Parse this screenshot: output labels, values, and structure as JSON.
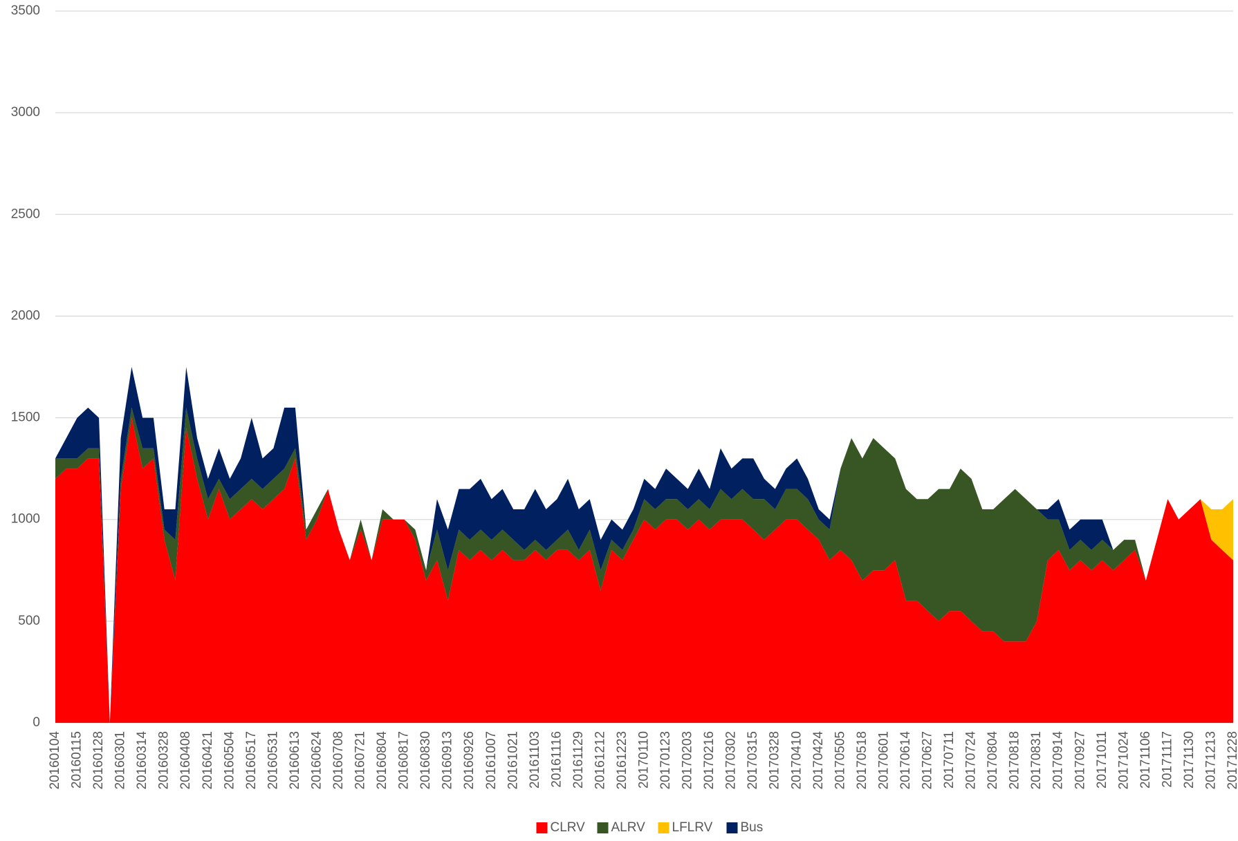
{
  "chart_data": {
    "type": "stacked_area",
    "categories": [
      "20160104",
      null,
      "20160115",
      null,
      "20160128",
      null,
      "20160301",
      null,
      "20160314",
      null,
      "20160328",
      null,
      "20160408",
      null,
      "20160421",
      null,
      "20160504",
      null,
      "20160517",
      null,
      "20160531",
      null,
      "20160613",
      null,
      "20160624",
      null,
      "20160708",
      null,
      "20160721",
      null,
      "20160804",
      null,
      "20160817",
      null,
      "20160830",
      null,
      "20160913",
      null,
      "20160926",
      null,
      "20161007",
      null,
      "20161021",
      null,
      "20161103",
      null,
      "20161116",
      null,
      "20161129",
      null,
      "20161212",
      null,
      "20161223",
      null,
      "20170110",
      null,
      "20170123",
      null,
      "20170203",
      null,
      "20170216",
      null,
      "20170302",
      null,
      "20170315",
      null,
      "20170328",
      null,
      "20170410",
      null,
      "20170424",
      null,
      "20170505",
      null,
      "20170518",
      null,
      "20170601",
      null,
      "20170614",
      null,
      "20170627",
      null,
      "20170711",
      null,
      "20170724",
      null,
      "20170804",
      null,
      "20170818",
      null,
      "20170831",
      null,
      "20170914",
      null,
      "20170927",
      null,
      "20171011",
      null,
      "20171024",
      null,
      "20171106",
      null,
      "20171117",
      null,
      "20171130",
      null,
      "20171213",
      null,
      "20171228"
    ],
    "series": [
      {
        "name": "CLRV",
        "color": "#ff0000",
        "values": [
          1200,
          1250,
          1250,
          1300,
          1300,
          0,
          1150,
          1500,
          1250,
          1300,
          900,
          700,
          1450,
          1200,
          1000,
          1150,
          1000,
          1050,
          1100,
          1050,
          1100,
          1150,
          1300,
          900,
          1000,
          1150,
          950,
          800,
          950,
          800,
          1000,
          1000,
          1000,
          900,
          700,
          800,
          600,
          850,
          800,
          850,
          800,
          850,
          800,
          800,
          850,
          800,
          850,
          850,
          800,
          850,
          650,
          850,
          800,
          900,
          1000,
          950,
          1000,
          1000,
          950,
          1000,
          950,
          1000,
          1000,
          1000,
          950,
          900,
          950,
          1000,
          1000,
          950,
          900,
          800,
          850,
          800,
          700,
          750,
          750,
          800,
          600,
          600,
          550,
          500,
          550,
          550,
          500,
          450,
          450,
          400,
          400,
          400,
          500,
          800,
          850,
          750,
          800,
          750,
          800,
          750,
          800,
          850,
          700,
          900,
          1100,
          1000,
          1050,
          1100,
          900,
          850,
          800
        ]
      },
      {
        "name": "ALRV",
        "color": "#375623",
        "values": [
          100,
          50,
          50,
          50,
          50,
          0,
          50,
          50,
          100,
          50,
          50,
          200,
          100,
          100,
          100,
          50,
          100,
          100,
          100,
          100,
          100,
          100,
          50,
          50,
          50,
          0,
          0,
          0,
          50,
          0,
          50,
          0,
          0,
          50,
          50,
          150,
          150,
          100,
          100,
          100,
          100,
          100,
          100,
          50,
          50,
          50,
          50,
          100,
          50,
          100,
          100,
          50,
          50,
          50,
          100,
          100,
          100,
          100,
          100,
          100,
          100,
          150,
          100,
          150,
          150,
          200,
          100,
          150,
          150,
          150,
          100,
          150,
          400,
          600,
          600,
          650,
          600,
          500,
          550,
          500,
          550,
          650,
          600,
          700,
          700,
          600,
          600,
          700,
          750,
          700,
          550,
          200,
          150,
          100,
          100,
          100,
          100,
          100,
          100,
          50,
          0,
          0,
          0,
          0,
          0,
          0,
          0,
          0,
          0
        ]
      },
      {
        "name": "LFLRV",
        "color": "#ffc000",
        "values": [
          0,
          0,
          0,
          0,
          0,
          0,
          0,
          0,
          0,
          0,
          0,
          0,
          0,
          0,
          0,
          0,
          0,
          0,
          0,
          0,
          0,
          0,
          0,
          0,
          0,
          0,
          0,
          0,
          0,
          0,
          0,
          0,
          0,
          0,
          0,
          0,
          0,
          0,
          0,
          0,
          0,
          0,
          0,
          0,
          0,
          0,
          0,
          0,
          0,
          0,
          0,
          0,
          0,
          0,
          0,
          0,
          0,
          0,
          0,
          0,
          0,
          0,
          0,
          0,
          0,
          0,
          0,
          0,
          0,
          0,
          0,
          0,
          0,
          0,
          0,
          0,
          0,
          0,
          0,
          0,
          0,
          0,
          0,
          0,
          0,
          0,
          0,
          0,
          0,
          0,
          0,
          0,
          0,
          0,
          0,
          0,
          0,
          0,
          0,
          0,
          0,
          0,
          0,
          0,
          0,
          0,
          150,
          200,
          300
        ]
      },
      {
        "name": "Bus",
        "color": "#002060",
        "values": [
          0,
          100,
          200,
          200,
          150,
          0,
          200,
          200,
          150,
          150,
          100,
          150,
          200,
          100,
          100,
          150,
          100,
          150,
          300,
          150,
          150,
          300,
          200,
          0,
          0,
          0,
          0,
          0,
          0,
          0,
          0,
          0,
          0,
          0,
          0,
          150,
          200,
          200,
          250,
          250,
          200,
          200,
          150,
          200,
          250,
          200,
          200,
          250,
          200,
          150,
          150,
          100,
          100,
          100,
          100,
          100,
          150,
          100,
          100,
          150,
          100,
          200,
          150,
          150,
          200,
          100,
          100,
          100,
          150,
          100,
          50,
          50,
          0,
          0,
          0,
          0,
          0,
          0,
          0,
          0,
          0,
          0,
          0,
          0,
          0,
          0,
          0,
          0,
          0,
          0,
          0,
          50,
          100,
          100,
          100,
          150,
          100,
          0,
          0,
          0,
          0,
          0,
          0,
          0,
          0,
          0,
          0,
          0,
          0
        ]
      }
    ],
    "ylim": [
      0,
      3500
    ],
    "yticks": [
      0,
      500,
      1000,
      1500,
      2000,
      2500,
      3000,
      3500
    ],
    "grid": true,
    "legend": "bottom"
  }
}
